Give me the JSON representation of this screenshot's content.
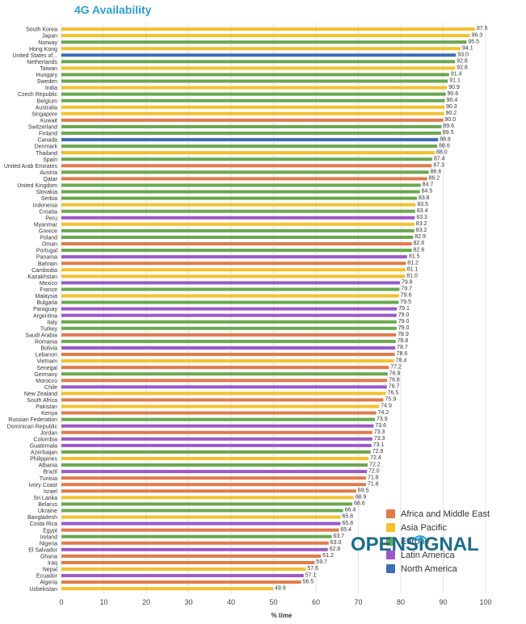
{
  "chart_data": {
    "type": "bar",
    "orientation": "horizontal",
    "title": "4G Availability",
    "xlabel": "% time",
    "ylabel": "",
    "xlim": [
      0,
      100
    ],
    "xticks": [
      0,
      10,
      20,
      30,
      40,
      50,
      60,
      70,
      80,
      90,
      100
    ],
    "grid": true,
    "legend_position": "bottom-right",
    "region_colors": {
      "Africa and Middle East": "#e07b4a",
      "Asia Pacific": "#f2c12e",
      "Europe": "#6aa84f",
      "Latin America": "#9b59c6",
      "North America": "#3d6db5"
    },
    "legend": [
      "Africa and Middle East",
      "Asia Pacific",
      "Europe",
      "Latin America",
      "North America"
    ],
    "bars": [
      {
        "country": "South Korea",
        "value": 97.5,
        "region": "Asia Pacific"
      },
      {
        "country": "Japan",
        "value": 96.3,
        "region": "Asia Pacific"
      },
      {
        "country": "Norway",
        "value": 95.5,
        "region": "Europe"
      },
      {
        "country": "Hong Kong",
        "value": 94.1,
        "region": "Asia Pacific"
      },
      {
        "country": "United States of...",
        "value": 93.0,
        "label": "93.0",
        "region": "North America"
      },
      {
        "country": "Netherlands",
        "value": 92.8,
        "region": "Europe"
      },
      {
        "country": "Taiwan",
        "value": 92.8,
        "region": "Asia Pacific"
      },
      {
        "country": "Hungary",
        "value": 91.4,
        "region": "Europe"
      },
      {
        "country": "Sweden",
        "value": 91.1,
        "region": "Europe"
      },
      {
        "country": "India",
        "value": 90.9,
        "region": "Asia Pacific"
      },
      {
        "country": "Czech Republic",
        "value": 90.6,
        "region": "Europe"
      },
      {
        "country": "Belgium",
        "value": 90.4,
        "region": "Europe"
      },
      {
        "country": "Australia",
        "value": 90.3,
        "region": "Asia Pacific"
      },
      {
        "country": "Singapore",
        "value": 90.2,
        "region": "Asia Pacific"
      },
      {
        "country": "Kuwait",
        "value": 90.0,
        "label": "90.0",
        "region": "Africa and Middle East"
      },
      {
        "country": "Switzerland",
        "value": 89.6,
        "region": "Europe"
      },
      {
        "country": "Finland",
        "value": 89.5,
        "region": "Europe"
      },
      {
        "country": "Canada",
        "value": 88.8,
        "region": "North America"
      },
      {
        "country": "Denmark",
        "value": 88.6,
        "region": "Europe"
      },
      {
        "country": "Thailand",
        "value": 88.0,
        "label": "88.0",
        "region": "Asia Pacific"
      },
      {
        "country": "Spain",
        "value": 87.4,
        "region": "Europe"
      },
      {
        "country": "United Arab Emirates",
        "value": 87.3,
        "region": "Africa and Middle East"
      },
      {
        "country": "Austria",
        "value": 86.6,
        "region": "Europe"
      },
      {
        "country": "Qatar",
        "value": 86.2,
        "region": "Africa and Middle East"
      },
      {
        "country": "United Kingdom",
        "value": 84.7,
        "region": "Europe"
      },
      {
        "country": "Slovakia",
        "value": 84.5,
        "region": "Europe"
      },
      {
        "country": "Serbia",
        "value": 83.8,
        "region": "Europe"
      },
      {
        "country": "Indonesia",
        "value": 83.5,
        "region": "Asia Pacific"
      },
      {
        "country": "Croatia",
        "value": 83.4,
        "region": "Europe"
      },
      {
        "country": "Peru",
        "value": 83.3,
        "region": "Latin America"
      },
      {
        "country": "Myanmar",
        "value": 83.2,
        "region": "Asia Pacific"
      },
      {
        "country": "Greece",
        "value": 83.2,
        "region": "Europe"
      },
      {
        "country": "Poland",
        "value": 82.9,
        "region": "Europe"
      },
      {
        "country": "Oman",
        "value": 82.6,
        "region": "Africa and Middle East"
      },
      {
        "country": "Portugal",
        "value": 82.6,
        "region": "Europe"
      },
      {
        "country": "Panama",
        "value": 81.5,
        "region": "Latin America"
      },
      {
        "country": "Bahrain",
        "value": 81.2,
        "region": "Africa and Middle East"
      },
      {
        "country": "Cambodia",
        "value": 81.1,
        "region": "Asia Pacific"
      },
      {
        "country": "Kazakhstan",
        "value": 81.0,
        "label": "81.0",
        "region": "Asia Pacific"
      },
      {
        "country": "Mexico",
        "value": 79.8,
        "region": "Latin America"
      },
      {
        "country": "France",
        "value": 79.7,
        "region": "Europe"
      },
      {
        "country": "Malaysia",
        "value": 79.6,
        "region": "Asia Pacific"
      },
      {
        "country": "Bulgaria",
        "value": 79.5,
        "region": "Europe"
      },
      {
        "country": "Paraguay",
        "value": 79.1,
        "region": "Latin America"
      },
      {
        "country": "Argentina",
        "value": 79.0,
        "label": "79.0",
        "region": "Latin America"
      },
      {
        "country": "Italy",
        "value": 79.0,
        "label": "79.0",
        "region": "Europe"
      },
      {
        "country": "Turkey",
        "value": 79.0,
        "label": "79.0",
        "region": "Europe"
      },
      {
        "country": "Saudi Arabia",
        "value": 78.9,
        "region": "Africa and Middle East"
      },
      {
        "country": "Romania",
        "value": 78.8,
        "region": "Europe"
      },
      {
        "country": "Bolivia",
        "value": 78.7,
        "region": "Latin America"
      },
      {
        "country": "Lebanon",
        "value": 78.6,
        "region": "Africa and Middle East"
      },
      {
        "country": "Vietnam",
        "value": 78.4,
        "region": "Asia Pacific"
      },
      {
        "country": "Senegal",
        "value": 77.2,
        "region": "Africa and Middle East"
      },
      {
        "country": "Germany",
        "value": 76.9,
        "region": "Europe"
      },
      {
        "country": "Morocco",
        "value": 76.8,
        "region": "Africa and Middle East"
      },
      {
        "country": "Chile",
        "value": 76.7,
        "region": "Latin America"
      },
      {
        "country": "New Zealand",
        "value": 76.5,
        "region": "Asia Pacific"
      },
      {
        "country": "South Africa",
        "value": 75.9,
        "region": "Africa and Middle East"
      },
      {
        "country": "Pakistan",
        "value": 74.9,
        "region": "Asia Pacific"
      },
      {
        "country": "Kenya",
        "value": 74.2,
        "region": "Africa and Middle East"
      },
      {
        "country": "Russian Federation",
        "value": 73.9,
        "region": "Europe"
      },
      {
        "country": "Dominican Republic",
        "value": 73.6,
        "region": "Latin America"
      },
      {
        "country": "Jordan",
        "value": 73.3,
        "region": "Africa and Middle East"
      },
      {
        "country": "Colombia",
        "value": 73.3,
        "region": "Latin America"
      },
      {
        "country": "Guatemala",
        "value": 73.1,
        "region": "Latin America"
      },
      {
        "country": "Azerbaijan",
        "value": 72.9,
        "region": "Europe"
      },
      {
        "country": "Philippines",
        "value": 72.4,
        "region": "Asia Pacific"
      },
      {
        "country": "Albania",
        "value": 72.2,
        "region": "Europe"
      },
      {
        "country": "Brazil",
        "value": 72.0,
        "label": "72.0",
        "region": "Latin America"
      },
      {
        "country": "Tunisia",
        "value": 71.8,
        "region": "Africa and Middle East"
      },
      {
        "country": "Ivory Coast",
        "value": 71.8,
        "region": "Africa and Middle East"
      },
      {
        "country": "Israel",
        "value": 69.5,
        "region": "Africa and Middle East"
      },
      {
        "country": "Sri Lanka",
        "value": 68.9,
        "region": "Asia Pacific"
      },
      {
        "country": "Belarus",
        "value": 68.6,
        "region": "Europe"
      },
      {
        "country": "Ukraine",
        "value": 66.4,
        "region": "Europe"
      },
      {
        "country": "Bangladesh",
        "value": 65.8,
        "region": "Asia Pacific"
      },
      {
        "country": "Costa Rica",
        "value": 65.8,
        "region": "Latin America"
      },
      {
        "country": "Egypt",
        "value": 65.4,
        "region": "Africa and Middle East"
      },
      {
        "country": "Ireland",
        "value": 63.7,
        "region": "Europe"
      },
      {
        "country": "Nigeria",
        "value": 63.0,
        "label": "63.0",
        "region": "Africa and Middle East"
      },
      {
        "country": "El Salvador",
        "value": 62.8,
        "region": "Latin America"
      },
      {
        "country": "Ghana",
        "value": 61.2,
        "region": "Africa and Middle East"
      },
      {
        "country": "Iraq",
        "value": 59.7,
        "region": "Africa and Middle East"
      },
      {
        "country": "Nepal",
        "value": 57.6,
        "region": "Asia Pacific"
      },
      {
        "country": "Ecuador",
        "value": 57.1,
        "region": "Latin America"
      },
      {
        "country": "Algeria",
        "value": 56.5,
        "region": "Africa and Middle East"
      },
      {
        "country": "Uzbekistan",
        "value": 49.9,
        "region": "Asia Pacific"
      }
    ]
  },
  "branding": {
    "logo_text": "OPENSIGNAL"
  }
}
